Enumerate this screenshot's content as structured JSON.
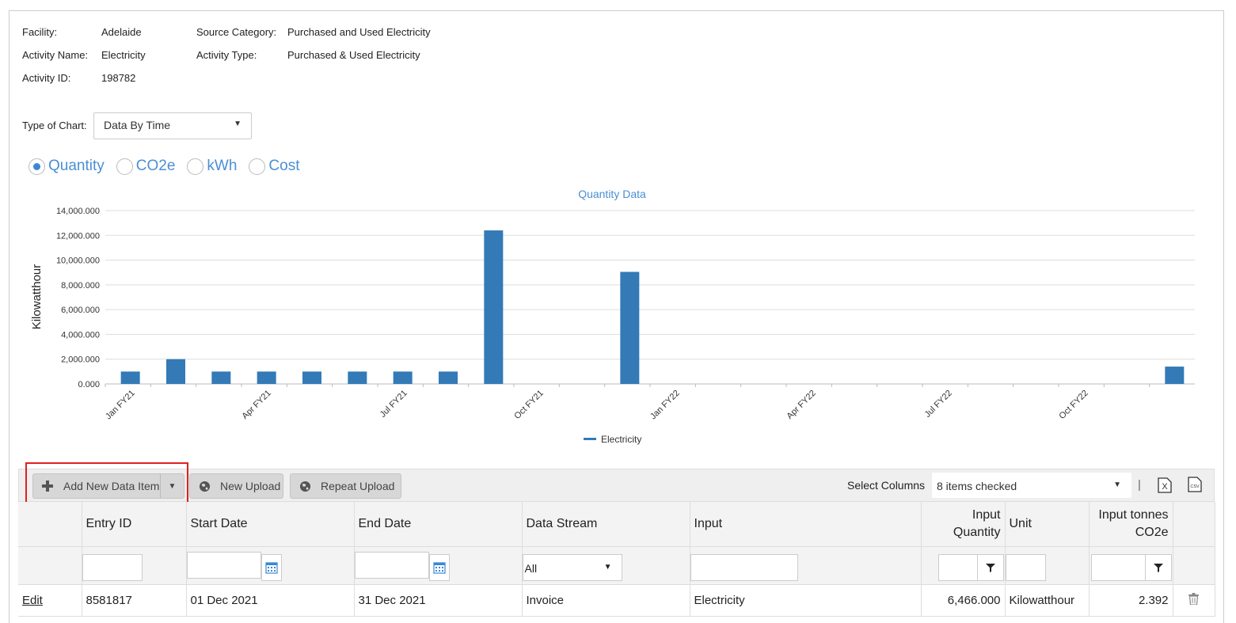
{
  "info": {
    "facility_label": "Facility:",
    "facility_value": "Adelaide",
    "activity_name_label": "Activity Name:",
    "activity_name_value": "Electricity",
    "activity_id_label": "Activity ID:",
    "activity_id_value": "198782",
    "source_category_label": "Source Category:",
    "source_category_value": "Purchased and Used Electricity",
    "activity_type_label": "Activity Type:",
    "activity_type_value": "Purchased & Used Electricity"
  },
  "chart_type": {
    "label": "Type of Chart:",
    "value": "Data By Time"
  },
  "metric_options": [
    {
      "label": "Quantity",
      "selected": true
    },
    {
      "label": "CO2e",
      "selected": false
    },
    {
      "label": "kWh",
      "selected": false
    },
    {
      "label": "Cost",
      "selected": false
    }
  ],
  "chart_data": {
    "type": "bar",
    "title": "Quantity Data",
    "ylabel": "Kilowatthour",
    "xlabel": "",
    "ylim": [
      0,
      14000
    ],
    "yticks": [
      "0.000",
      "2,000.000",
      "4,000.000",
      "6,000.000",
      "8,000.000",
      "10,000.000",
      "12,000.000",
      "14,000.000"
    ],
    "xtick_labels": [
      "Jan FY21",
      "Apr FY21",
      "Jul FY21",
      "Oct FY21",
      "Jan FY22",
      "Apr FY22",
      "Jul FY22",
      "Oct FY22"
    ],
    "categories": [
      "Jan FY21",
      "Feb FY21",
      "Mar FY21",
      "Apr FY21",
      "May FY21",
      "Jun FY21",
      "Jul FY21",
      "Aug FY21",
      "Sep FY21",
      "Oct FY21",
      "Nov FY21",
      "Dec FY21",
      "Jan FY22",
      "Feb FY22",
      "Mar FY22",
      "Apr FY22",
      "May FY22",
      "Jun FY22",
      "Jul FY22",
      "Aug FY22",
      "Sep FY22",
      "Oct FY22",
      "Nov FY22",
      "Dec FY22"
    ],
    "series": [
      {
        "name": "Electricity",
        "color": "#337ab7",
        "values": [
          1000,
          2000,
          1000,
          1000,
          1000,
          1000,
          1000,
          1000,
          12400,
          0,
          0,
          9050,
          0,
          0,
          0,
          0,
          0,
          0,
          0,
          0,
          0,
          0,
          0,
          1400
        ]
      }
    ],
    "legend": "bottom-center",
    "grid": true
  },
  "toolbar": {
    "add_label": "Add New Data Item",
    "new_upload_label": "New Upload",
    "repeat_upload_label": "Repeat Upload",
    "select_columns_label": "Select Columns",
    "select_columns_value": "8 items checked",
    "separator": "|",
    "excel_icon": "excel-export-icon",
    "csv_icon": "csv-export-icon"
  },
  "table": {
    "headers": {
      "entry_id": "Entry ID",
      "start_date": "Start Date",
      "end_date": "End Date",
      "data_stream": "Data Stream",
      "input": "Input",
      "input_quantity_1": "Input",
      "input_quantity_2": "Quantity",
      "unit": "Unit",
      "co2e_1": "Input tonnes",
      "co2e_2": "CO2e"
    },
    "filters": {
      "data_stream": "All"
    },
    "rows": [
      {
        "edit": "Edit",
        "entry_id": "8581817",
        "start_date": "01 Dec 2021",
        "end_date": "31 Dec 2021",
        "data_stream": "Invoice",
        "input": "Electricity",
        "input_quantity": "6,466.000",
        "unit": "Kilowatthour",
        "co2e": "2.392"
      }
    ]
  }
}
